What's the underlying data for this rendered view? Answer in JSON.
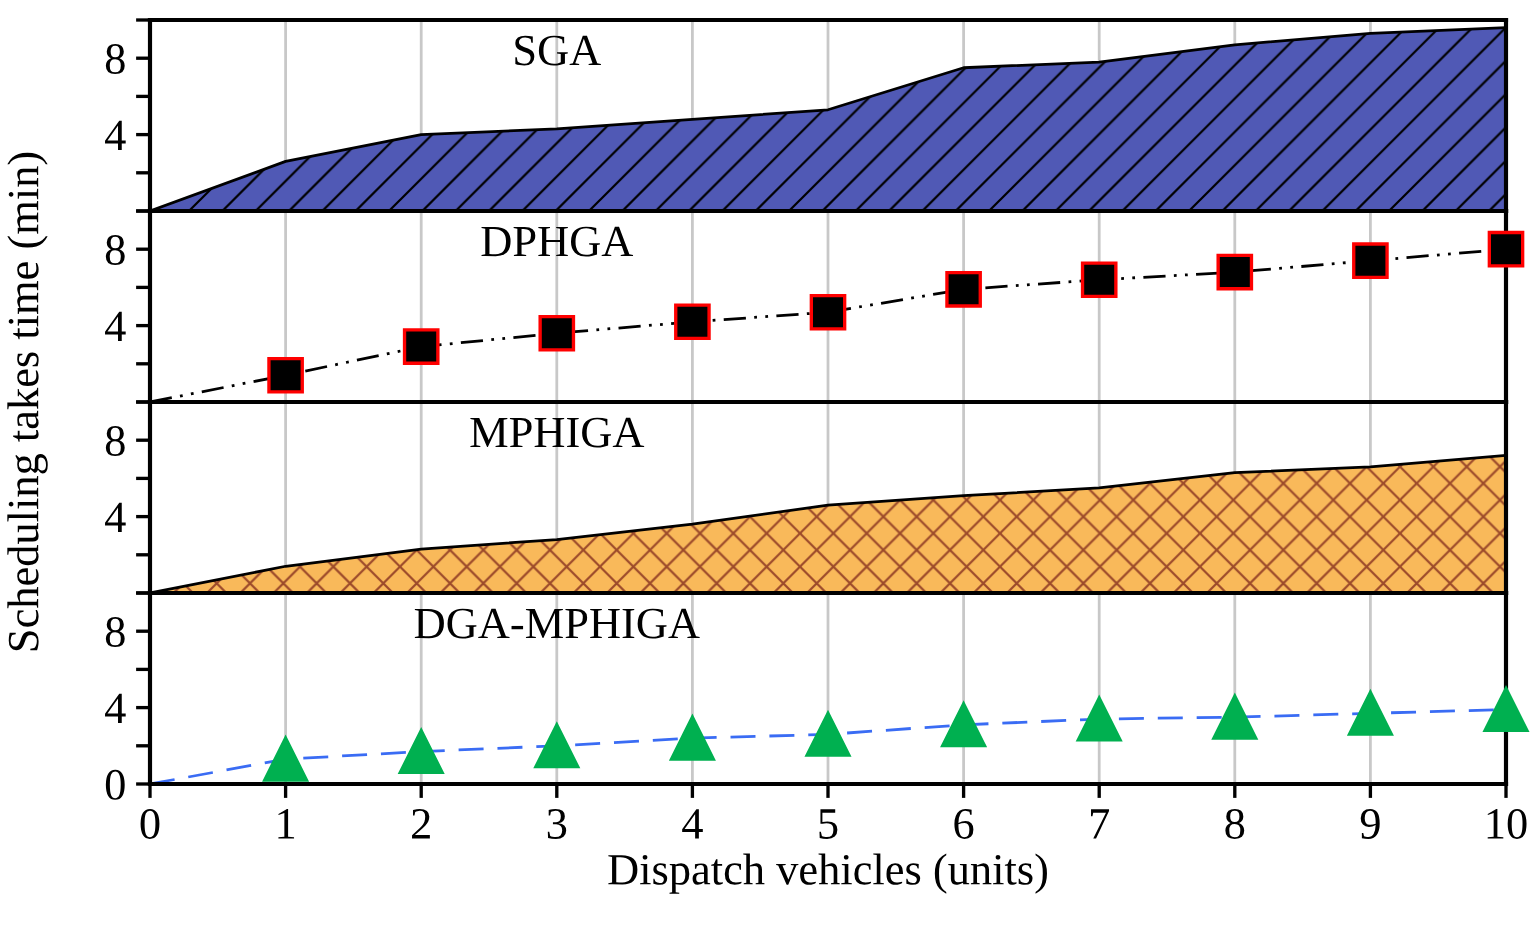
{
  "chart_data": [
    {
      "type": "area",
      "title": "SGA",
      "ylabel": "Scheduling takes time (min)",
      "x": [
        0,
        1,
        2,
        3,
        4,
        5,
        6,
        7,
        8,
        9,
        10
      ],
      "xlim": [
        0,
        10
      ],
      "ylim": [
        0,
        10
      ],
      "yticks": [
        4,
        8
      ],
      "grid": "x",
      "tick_labels": "y",
      "series": [
        {
          "color": "#5059b5",
          "values": [
            0,
            2.6,
            4.0,
            4.3,
            4.8,
            5.3,
            7.5,
            7.8,
            8.7,
            9.3,
            9.6
          ]
        }
      ]
    },
    {
      "type": "line",
      "title": "DPHGA",
      "x": [
        0,
        1,
        2,
        3,
        4,
        5,
        6,
        7,
        8,
        9,
        10
      ],
      "xlim": [
        0,
        10
      ],
      "ylim": [
        0,
        10
      ],
      "yticks": [
        4,
        8
      ],
      "grid": "x",
      "tick_labels": "y",
      "marker": "square",
      "line_style": "dashdotdot",
      "series": [
        {
          "color": "#000000",
          "colors": [
            null,
            "#000000",
            "#000000",
            "#000000",
            "#000000",
            "#000000",
            "#000000",
            "#000000",
            "#000000",
            "#000000",
            "#000000"
          ],
          "values": [
            0,
            1.4,
            2.9,
            3.6,
            4.2,
            4.7,
            5.9,
            6.4,
            6.8,
            7.4,
            8.0
          ]
        }
      ]
    },
    {
      "type": "area",
      "title": "MPHIGA",
      "x": [
        0,
        1,
        2,
        3,
        4,
        5,
        6,
        7,
        8,
        9,
        10
      ],
      "xlim": [
        0,
        10
      ],
      "ylim": [
        0,
        10
      ],
      "yticks": [
        4,
        8
      ],
      "grid": "x",
      "tick_labels": "y",
      "series": [
        {
          "color": "#f9b95a",
          "values": [
            0,
            1.4,
            2.3,
            2.8,
            3.6,
            4.6,
            5.1,
            5.5,
            6.3,
            6.6,
            7.2
          ]
        }
      ]
    },
    {
      "type": "line",
      "title": "DGA-MPHIGA",
      "xlabel": "Dispatch vehicles (units)",
      "x": [
        0,
        1,
        2,
        3,
        4,
        5,
        6,
        7,
        8,
        9,
        10
      ],
      "xlim": [
        0,
        10
      ],
      "xticks": [
        0,
        1,
        2,
        3,
        4,
        5,
        6,
        7,
        8,
        9,
        10
      ],
      "ylim": [
        0,
        10
      ],
      "yticks": [
        0,
        4,
        8
      ],
      "grid": "x",
      "marker": "triangle",
      "line_style": "dashed",
      "series": [
        {
          "color": "#3a6cf4",
          "colors": [
            null,
            "#00b050",
            "#00b050",
            "#00b050",
            "#00b050",
            "#00b050",
            "#00b050",
            "#00b050",
            "#00b050",
            "#00b050",
            "#00b050"
          ],
          "values": [
            0,
            1.3,
            1.7,
            2.0,
            2.4,
            2.6,
            3.1,
            3.4,
            3.5,
            3.7,
            3.9
          ]
        }
      ]
    }
  ]
}
